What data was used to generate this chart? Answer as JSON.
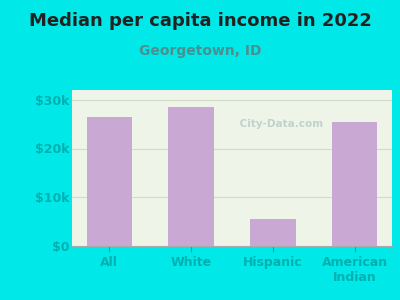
{
  "title": "Median per capita income in 2022",
  "subtitle": "Georgetown, ID",
  "categories": [
    "All",
    "White",
    "Hispanic",
    "American\nIndian"
  ],
  "values": [
    26500,
    28500,
    5500,
    25500
  ],
  "bar_color": "#c9a8d4",
  "background_outer": "#00e8e8",
  "background_inner": "#eef5e8",
  "title_color": "#222222",
  "subtitle_color": "#4a9090",
  "tick_label_color": "#00b0b0",
  "axis_label_color": "#00b0b0",
  "grid_color": "#d0dcc8",
  "ylim": [
    0,
    32000
  ],
  "yticks": [
    0,
    10000,
    20000,
    30000
  ],
  "ytick_labels": [
    "$0",
    "$10k",
    "$20k",
    "$30k"
  ],
  "watermark": " City-Data.com",
  "title_fontsize": 13,
  "subtitle_fontsize": 10,
  "tick_fontsize": 9
}
